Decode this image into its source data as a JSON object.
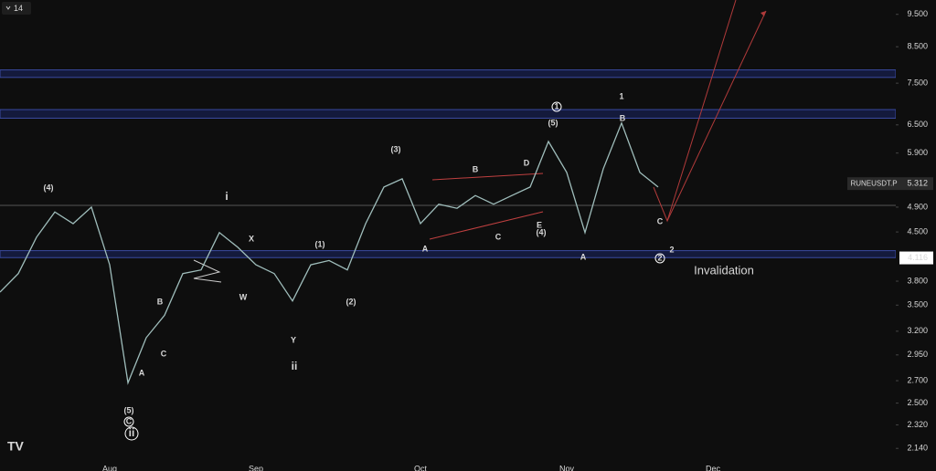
{
  "interval": "14",
  "chart_data": {
    "type": "line",
    "log_scale": true,
    "ylim": [
      1.98,
      9.98
    ],
    "yticks": [
      {
        "value": 9.5,
        "label": "9.500"
      },
      {
        "value": 8.5,
        "label": "8.500"
      },
      {
        "value": 7.5,
        "label": "7.500"
      },
      {
        "value": 6.5,
        "label": "6.500"
      },
      {
        "value": 5.9,
        "label": "5.900"
      },
      {
        "value": 4.9,
        "label": "4.900"
      },
      {
        "value": 4.5,
        "label": "4.500"
      },
      {
        "value": 3.8,
        "label": "3.800"
      },
      {
        "value": 3.5,
        "label": "3.500"
      },
      {
        "value": 3.2,
        "label": "3.200"
      },
      {
        "value": 2.95,
        "label": "2.950"
      },
      {
        "value": 2.7,
        "label": "2.700"
      },
      {
        "value": 2.5,
        "label": "2.500"
      },
      {
        "value": 2.32,
        "label": "2.320"
      },
      {
        "value": 2.14,
        "label": "2.140"
      }
    ],
    "categories": [
      null,
      null,
      null,
      null,
      null,
      null,
      "Aug",
      null,
      null,
      null,
      null,
      null,
      null,
      null,
      "Sep",
      null,
      null,
      null,
      null,
      null,
      null,
      null,
      null,
      "Oct",
      null,
      null,
      null,
      null,
      null,
      null,
      null,
      "Nov",
      null,
      null,
      null,
      null,
      null,
      null,
      null,
      "Dec",
      null,
      null,
      null,
      null,
      null,
      null,
      null,
      null,
      null
    ],
    "series": [
      {
        "name": "RUNEUSDT.P",
        "color": "#9fbdbb",
        "values": [
          3.66,
          3.9,
          4.42,
          4.82,
          4.63,
          4.9,
          4.02,
          2.68,
          3.13,
          3.38,
          3.9,
          3.95,
          4.49,
          4.27,
          4.02,
          3.9,
          3.55,
          4.02,
          4.08,
          3.95,
          4.63,
          5.25,
          5.4,
          4.63,
          4.95,
          4.88,
          5.1,
          4.95,
          5.1,
          5.25,
          6.14,
          5.52,
          4.49,
          5.59,
          6.54,
          5.52,
          5.25,
          null,
          null,
          null,
          null,
          null,
          null,
          null,
          null,
          null,
          null,
          null,
          null
        ]
      }
    ],
    "last_price": 5.312,
    "level": 4.116,
    "zones": [
      [
        7.65,
        7.85
      ],
      [
        6.65,
        6.85
      ],
      [
        4.12,
        4.22
      ]
    ],
    "hline": 4.93,
    "annotations": [
      {
        "text": "(4)",
        "color": "#ffffff"
      },
      {
        "text": "i",
        "color": "#ffffff"
      },
      {
        "text": "X",
        "color": "#f0902a"
      },
      {
        "text": "W",
        "color": "#f0902a"
      },
      {
        "text": "B",
        "color": "#ffffff"
      },
      {
        "text": "C",
        "color": "#ffffff"
      },
      {
        "text": "A",
        "color": "#ffffff"
      },
      {
        "text": "(5)",
        "color": "#ffffff"
      },
      {
        "text": "C",
        "color": "#ffffff",
        "circle": true
      },
      {
        "text": "ii",
        "color": "#ffffff",
        "circle": true
      },
      {
        "text": "(1)",
        "color": "#ffffff"
      },
      {
        "text": "(2)",
        "color": "#ffffff"
      },
      {
        "text": "Y",
        "color": "#f0902a"
      },
      {
        "text": "ii",
        "color": "#ffffff"
      },
      {
        "text": "(3)",
        "color": "#ffffff"
      },
      {
        "text": "B",
        "color": "#e04545"
      },
      {
        "text": "D",
        "color": "#e04545"
      },
      {
        "text": "A",
        "color": "#e04545"
      },
      {
        "text": "C",
        "color": "#e04545"
      },
      {
        "text": "E",
        "color": "#e04545"
      },
      {
        "text": "(4)",
        "color": "#ffffff"
      },
      {
        "text": "(5)",
        "color": "#ffffff"
      },
      {
        "text": "1",
        "color": "#ffffff",
        "circle": true
      },
      {
        "text": "1",
        "color": "#f0902a"
      },
      {
        "text": "B",
        "color": "#e04545"
      },
      {
        "text": "A",
        "color": "#e04545"
      },
      {
        "text": "C",
        "color": "#e04545"
      },
      {
        "text": "2",
        "color": "#ffffff",
        "circle": true
      },
      {
        "text": "2",
        "color": "#f0902a"
      },
      {
        "text": "Invalidation",
        "color": "#ffffff"
      }
    ]
  }
}
